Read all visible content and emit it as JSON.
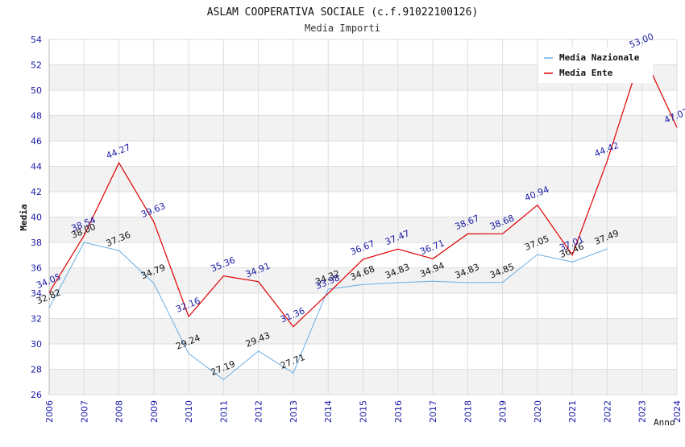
{
  "chart_data": {
    "type": "line",
    "title": "ASLAM COOPERATIVA SOCIALE (c.f.91022100126)",
    "subtitle": "Media Importi",
    "xlabel": "Anno",
    "ylabel": "Media",
    "ylim": [
      26,
      54
    ],
    "yticks": [
      "26",
      "28",
      "30",
      "32",
      "34",
      "36",
      "38",
      "40",
      "42",
      "44",
      "46",
      "48",
      "50",
      "52",
      "54"
    ],
    "categories": [
      "2006",
      "2007",
      "2008",
      "2009",
      "2010",
      "2011",
      "2012",
      "2013",
      "2014",
      "2015",
      "2016",
      "2017",
      "2018",
      "2019",
      "2020",
      "2021",
      "2022",
      "2023",
      "2024"
    ],
    "legend_position": "top-right",
    "series": [
      {
        "name": "Media Nazionale",
        "color": "#6aaee6",
        "values": [
          32.82,
          38.0,
          37.36,
          34.79,
          29.24,
          27.19,
          29.43,
          27.71,
          34.32,
          34.68,
          34.83,
          34.94,
          34.83,
          34.85,
          37.05,
          36.46,
          37.49,
          null,
          null
        ],
        "labels": [
          "32.82",
          "38.00",
          "37.36",
          "34.79",
          "29.24",
          "27.19",
          "29.43",
          "27.71",
          "34.32",
          "34.68",
          "34.83",
          "34.94",
          "34.83",
          "34.85",
          "37.05",
          "36.46",
          "37.49",
          "",
          ""
        ]
      },
      {
        "name": "Media Ente",
        "color": "#e00000",
        "values": [
          34.05,
          38.54,
          44.27,
          39.63,
          32.16,
          35.36,
          34.91,
          31.36,
          33.98,
          36.67,
          37.47,
          36.71,
          38.67,
          38.68,
          40.94,
          37.01,
          44.42,
          53.0,
          47.07
        ],
        "labels": [
          "34.05",
          "38.54",
          "44.27",
          "39.63",
          "32.16",
          "35.36",
          "34.91",
          "31.36",
          "33.98",
          "36.67",
          "37.47",
          "36.71",
          "38.67",
          "38.68",
          "40.94",
          "37.01",
          "44.42",
          "53.00",
          "47.07"
        ]
      }
    ]
  }
}
